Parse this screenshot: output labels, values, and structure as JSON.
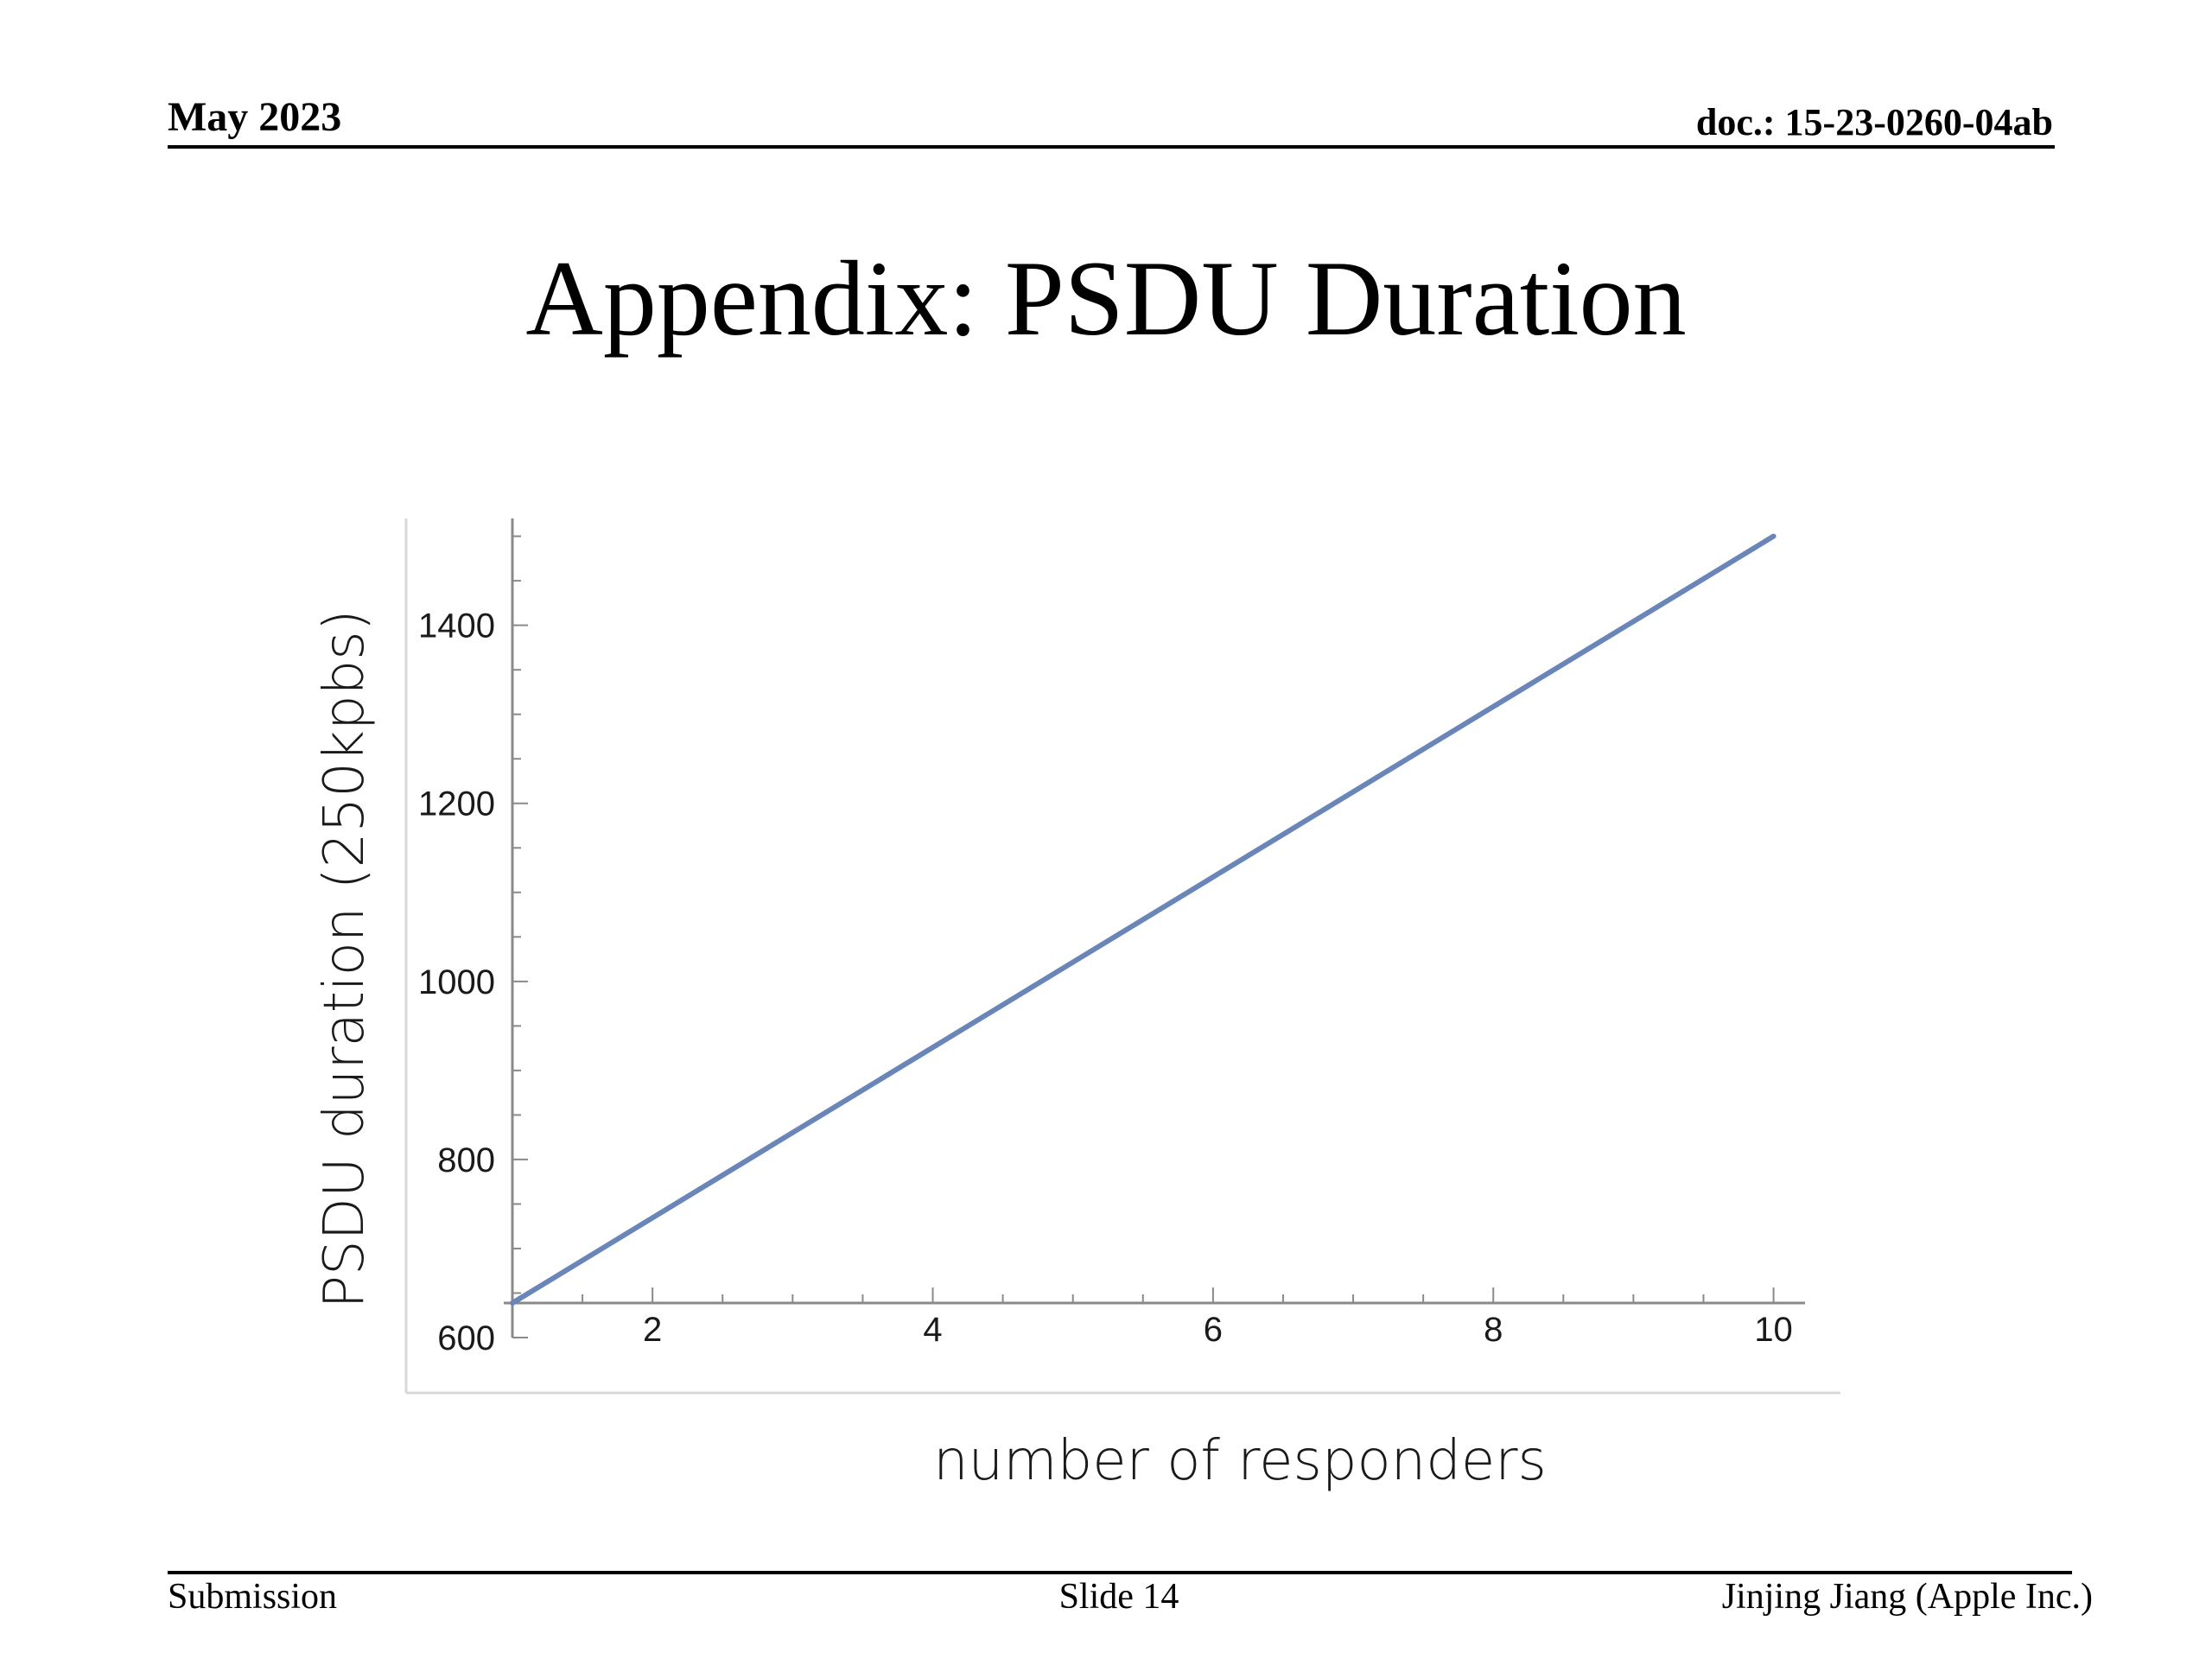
{
  "header": {
    "date": "May 2023",
    "doc": "doc.: 15-23-0260-04ab"
  },
  "title": "Appendix: PSDU Duration",
  "footer": {
    "left": "Submission",
    "center": "Slide 14",
    "right": "Jinjing Jiang (Apple Inc.)"
  },
  "chart_data": {
    "type": "line",
    "xlabel": "number of responders",
    "ylabel": "PSDU duration (250kpbs)",
    "xlim": [
      1,
      10.2
    ],
    "ylim": [
      600,
      1520
    ],
    "x_ticks": [
      2,
      4,
      6,
      8,
      10
    ],
    "y_ticks": [
      600,
      800,
      1000,
      1200,
      1400
    ],
    "grid": false,
    "line_color": "#6a86b8",
    "series": [
      {
        "x": [
          1,
          10
        ],
        "values": [
          640,
          1500
        ]
      }
    ]
  }
}
